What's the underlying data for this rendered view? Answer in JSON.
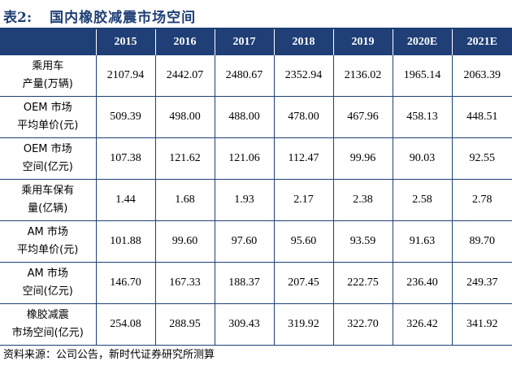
{
  "title": {
    "number": "表2:",
    "text": "国内橡胶减震市场空间"
  },
  "table": {
    "headers": [
      "",
      "2015",
      "2016",
      "2017",
      "2018",
      "2019",
      "2020E",
      "2021E"
    ],
    "rows": [
      {
        "label": [
          "乘用车",
          "产量(万辆)"
        ],
        "values": [
          "2107.94",
          "2442.07",
          "2480.67",
          "2352.94",
          "2136.02",
          "1965.14",
          "2063.39"
        ]
      },
      {
        "label": [
          "OEM 市场",
          "平均单价(元)"
        ],
        "values": [
          "509.39",
          "498.00",
          "488.00",
          "478.00",
          "467.96",
          "458.13",
          "448.51"
        ]
      },
      {
        "label": [
          "OEM 市场",
          "空间(亿元)"
        ],
        "values": [
          "107.38",
          "121.62",
          "121.06",
          "112.47",
          "99.96",
          "90.03",
          "92.55"
        ]
      },
      {
        "label": [
          "乘用车保有",
          "量(亿辆)"
        ],
        "values": [
          "1.44",
          "1.68",
          "1.93",
          "2.17",
          "2.38",
          "2.58",
          "2.78"
        ]
      },
      {
        "label": [
          "AM 市场",
          "平均单价(元)"
        ],
        "values": [
          "101.88",
          "99.60",
          "97.60",
          "95.60",
          "93.59",
          "91.63",
          "89.70"
        ]
      },
      {
        "label": [
          "AM 市场",
          "空间(亿元)"
        ],
        "values": [
          "146.70",
          "167.33",
          "188.37",
          "207.45",
          "222.75",
          "236.40",
          "249.37"
        ]
      },
      {
        "label": [
          "橡胶减震",
          "市场空间(亿元)"
        ],
        "values": [
          "254.08",
          "288.95",
          "309.43",
          "319.92",
          "322.70",
          "326.42",
          "341.92"
        ]
      }
    ]
  },
  "source": "资料来源：公司公告，新时代证券研究所测算"
}
